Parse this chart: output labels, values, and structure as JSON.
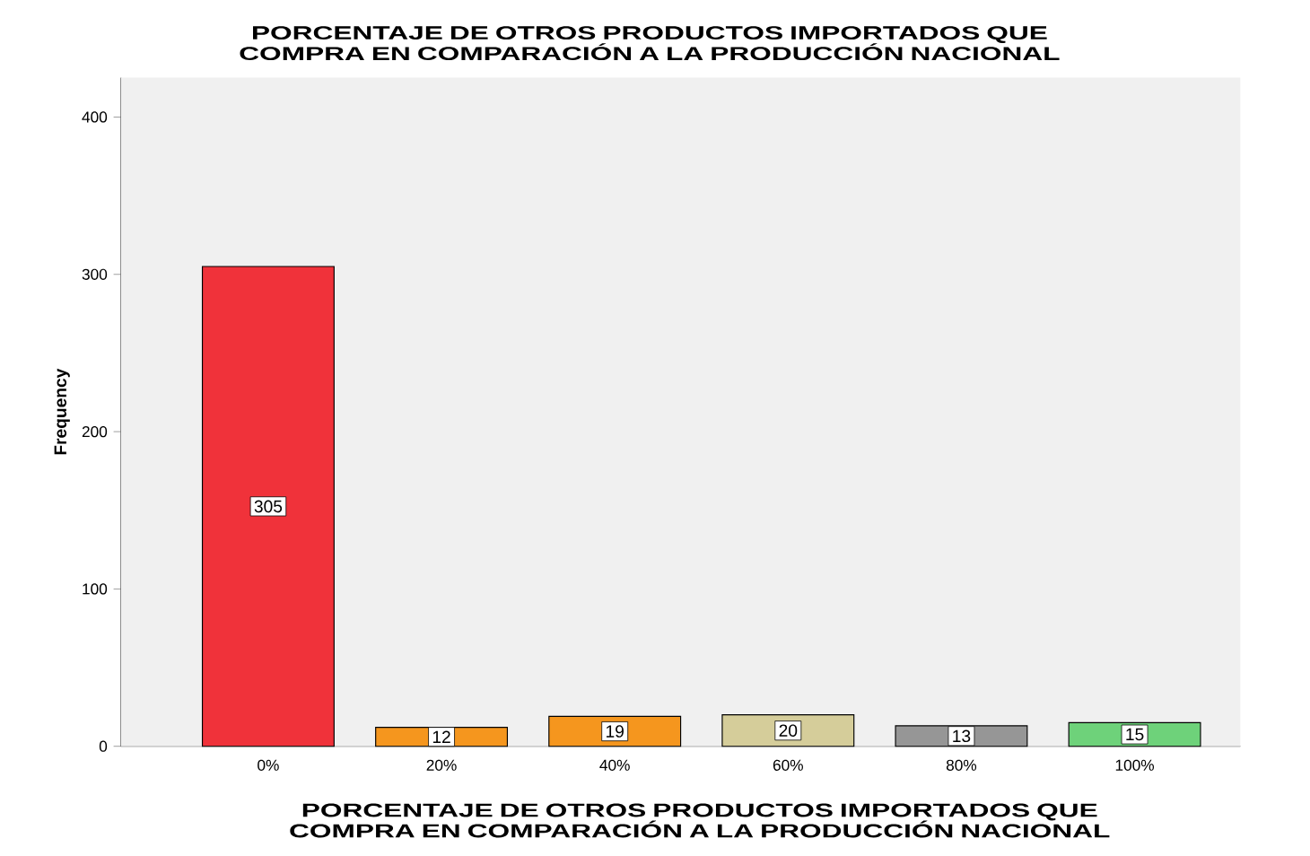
{
  "chart_data": {
    "type": "bar",
    "title": "PORCENTAJE DE OTROS PRODUCTOS IMPORTADOS QUE COMPRA EN COMPARACIÓN A LA PRODUCCIÓN NACIONAL",
    "xlabel": "PORCENTAJE DE OTROS PRODUCTOS IMPORTADOS QUE COMPRA EN COMPARACIÓN A LA PRODUCCIÓN NACIONAL",
    "ylabel": "Frequency",
    "categories": [
      "0%",
      "20%",
      "40%",
      "60%",
      "80%",
      "100%"
    ],
    "values": [
      305,
      12,
      19,
      20,
      13,
      15
    ],
    "colors": [
      "#f0323a",
      "#f5961e",
      "#f5961e",
      "#d5cd9a",
      "#969696",
      "#6ed27a"
    ],
    "ylim": [
      0,
      425
    ],
    "yticks": [
      0,
      100,
      200,
      300,
      400
    ],
    "data_labels": true,
    "grid": false
  }
}
